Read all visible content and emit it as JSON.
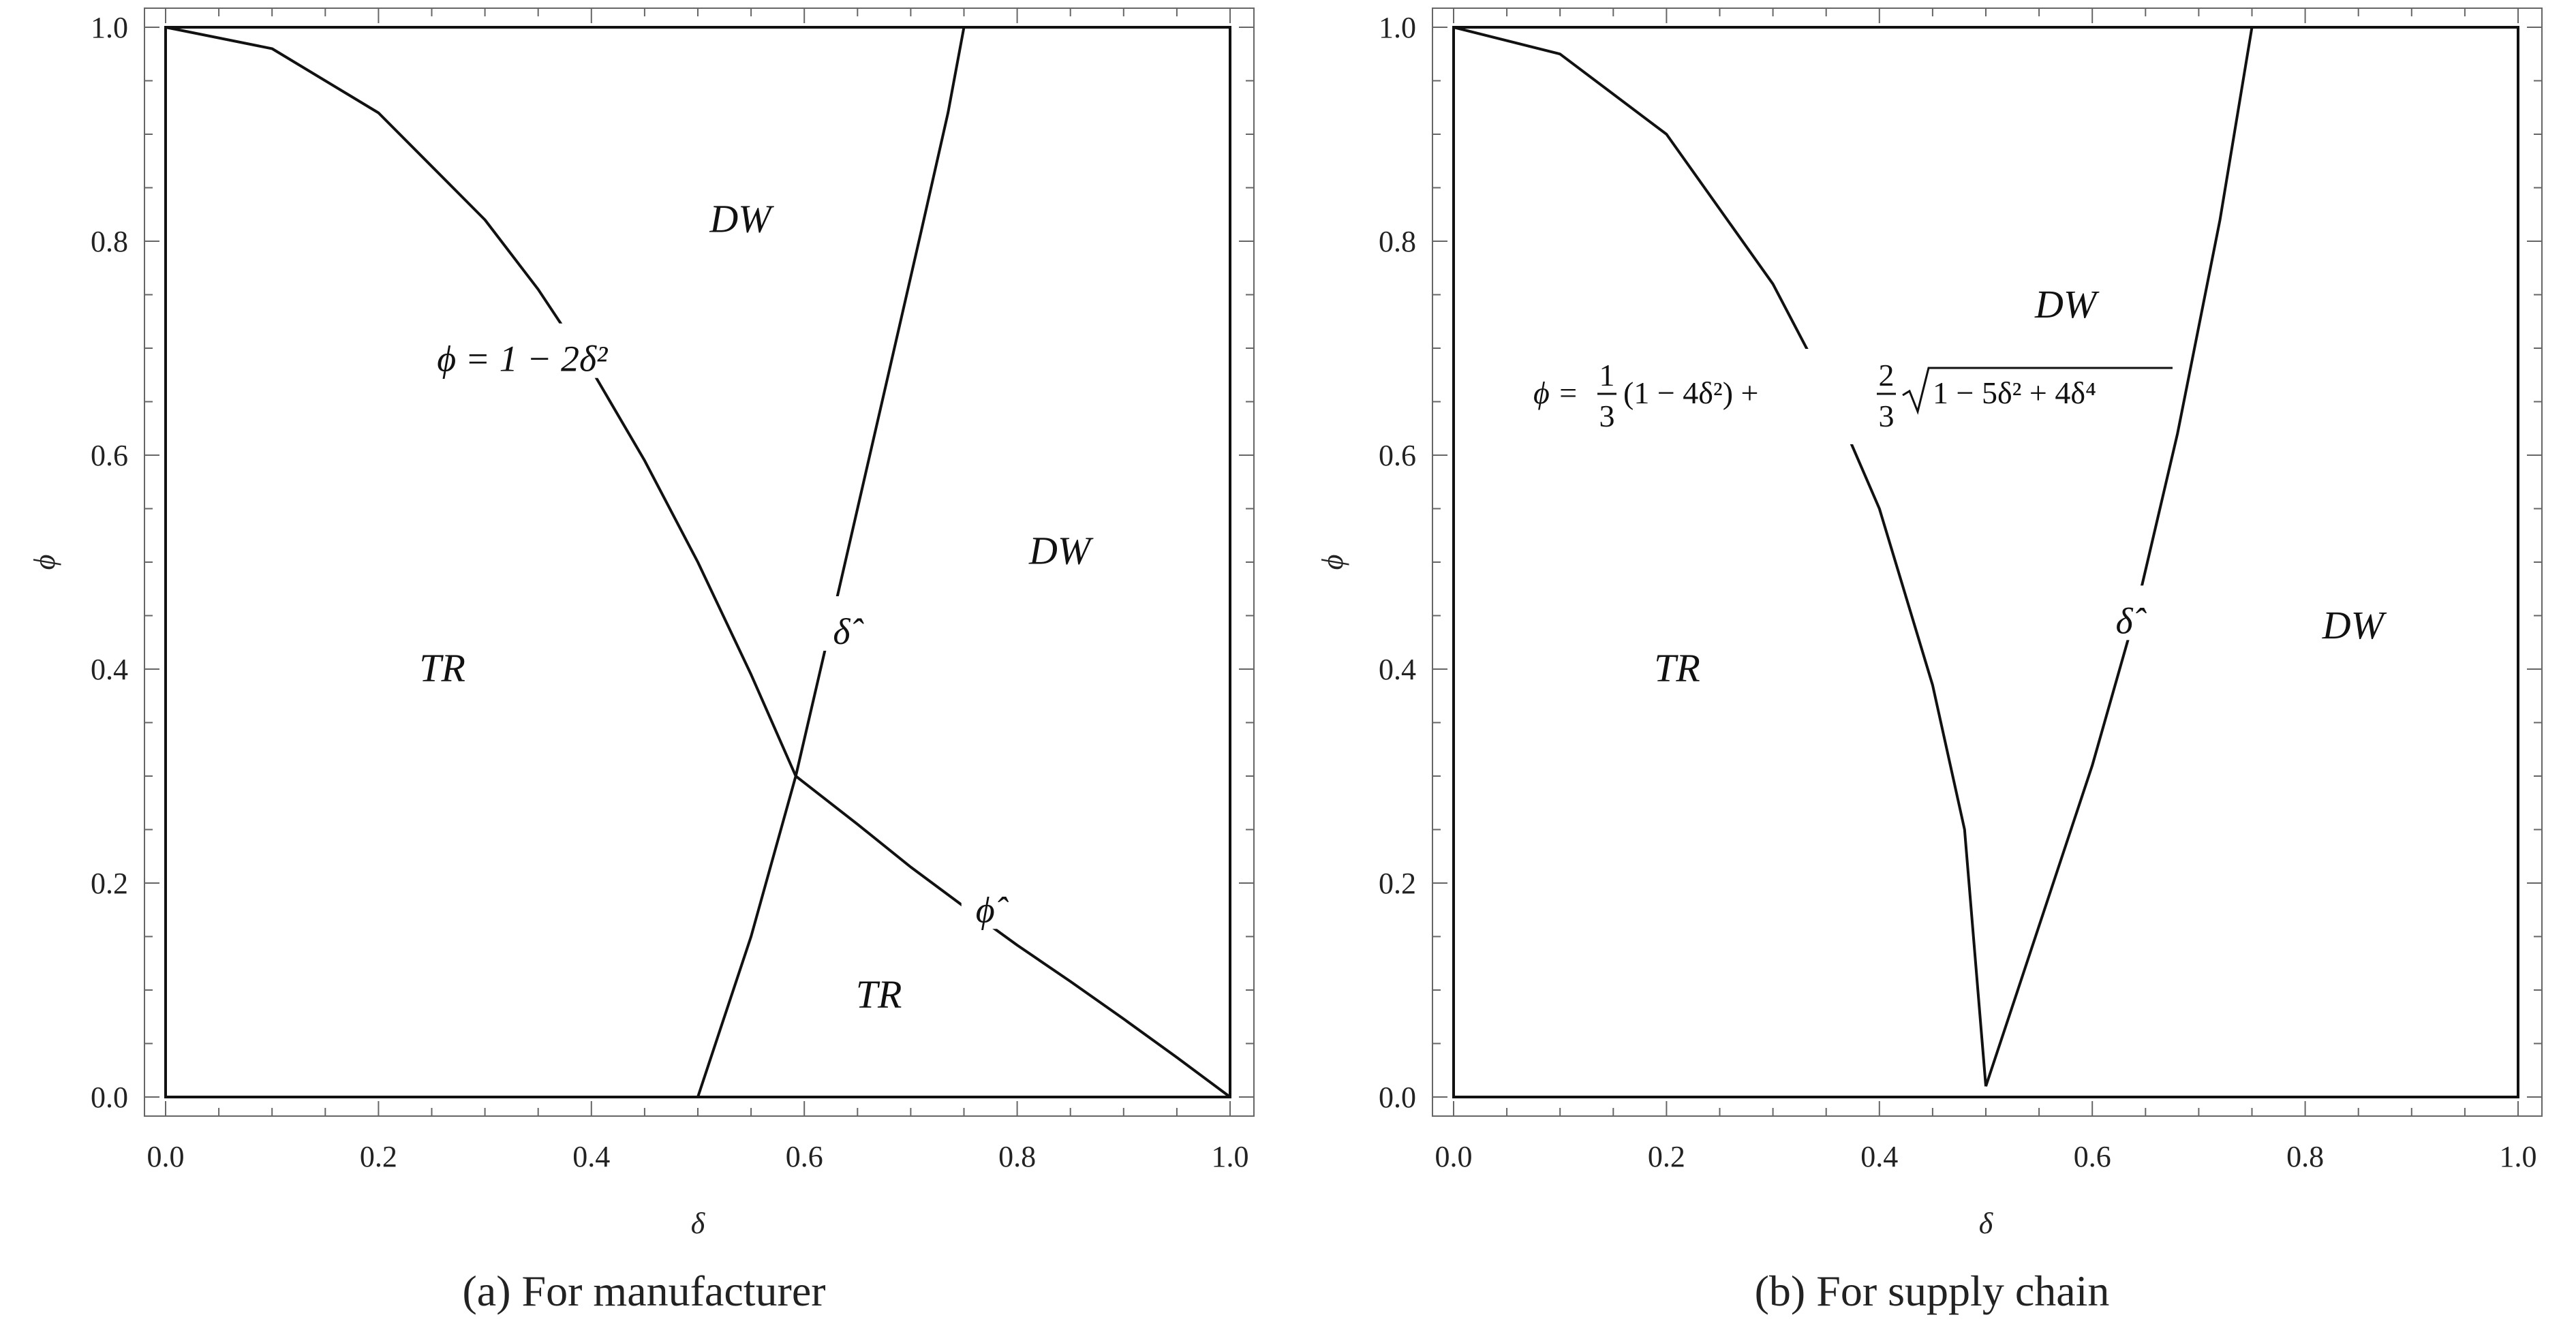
{
  "chart_data": [
    {
      "type": "line",
      "caption": "(a) For manufacturer",
      "xlabel": "δ",
      "ylabel": "ϕ",
      "xlim": [
        0,
        1
      ],
      "ylim": [
        0,
        1
      ],
      "xticks": [
        "0.0",
        "0.2",
        "0.4",
        "0.6",
        "0.8",
        "1.0"
      ],
      "yticks": [
        "0.0",
        "0.2",
        "0.4",
        "0.6",
        "0.8",
        "1.0"
      ],
      "grid": false,
      "series": [
        {
          "label": "ϕ = 1 − 2δ²",
          "x": [
            0,
            0.1,
            0.2,
            0.3,
            0.35,
            0.4,
            0.45,
            0.5,
            0.55,
            0.592
          ],
          "y": [
            1,
            0.98,
            0.92,
            0.82,
            0.755,
            0.68,
            0.595,
            0.5,
            0.395,
            0.3
          ]
        },
        {
          "label": "δ̂",
          "x": [
            0.5,
            0.52,
            0.55,
            0.592,
            0.62,
            0.65,
            0.68,
            0.71,
            0.735,
            0.75
          ],
          "y": [
            0.0,
            0.06,
            0.15,
            0.3,
            0.42,
            0.55,
            0.68,
            0.81,
            0.92,
            1.0
          ]
        },
        {
          "label": "ϕ̂",
          "x": [
            0.592,
            0.65,
            0.7,
            0.75,
            0.8,
            0.85,
            0.9,
            0.95,
            1.0
          ],
          "y": [
            0.3,
            0.255,
            0.215,
            0.178,
            0.142,
            0.108,
            0.073,
            0.037,
            0.0
          ]
        }
      ],
      "annotations": [
        {
          "text": "DW",
          "x": 0.54,
          "y": 0.82,
          "kind": "region"
        },
        {
          "text": "DW",
          "x": 0.84,
          "y": 0.51,
          "kind": "region"
        },
        {
          "text": "TR",
          "x": 0.26,
          "y": 0.4,
          "kind": "region"
        },
        {
          "text": "TR",
          "x": 0.67,
          "y": 0.095,
          "kind": "region"
        },
        {
          "text": "ϕ = 1 − 2δ²",
          "x": 0.335,
          "y": 0.69,
          "kind": "curve"
        },
        {
          "text": "δ̂",
          "x": 0.635,
          "y": 0.435,
          "kind": "curve"
        },
        {
          "text": "ϕ̂",
          "x": 0.77,
          "y": 0.175,
          "kind": "curve"
        }
      ]
    },
    {
      "type": "line",
      "caption": "(b) For supply chain",
      "xlabel": "δ",
      "ylabel": "ϕ",
      "xlim": [
        0,
        1
      ],
      "ylim": [
        0,
        1
      ],
      "xticks": [
        "0.0",
        "0.2",
        "0.4",
        "0.6",
        "0.8",
        "1.0"
      ],
      "yticks": [
        "0.0",
        "0.2",
        "0.4",
        "0.6",
        "0.8",
        "1.0"
      ],
      "grid": false,
      "series": [
        {
          "label": "ϕ = ⅓(1 − 4δ²) + ⅔√(1 − 5δ² + 4δ⁴)",
          "x": [
            0,
            0.1,
            0.2,
            0.3,
            0.35,
            0.4,
            0.45,
            0.48,
            0.5
          ],
          "y": [
            1,
            0.975,
            0.9,
            0.76,
            0.665,
            0.55,
            0.385,
            0.25,
            0.01
          ]
        },
        {
          "label": "δ̂",
          "x": [
            0.5,
            0.53,
            0.56,
            0.6,
            0.64,
            0.68,
            0.72,
            0.75
          ],
          "y": [
            0.01,
            0.1,
            0.19,
            0.31,
            0.45,
            0.62,
            0.82,
            1.0
          ]
        }
      ],
      "annotations": [
        {
          "text": "DW",
          "x": 0.575,
          "y": 0.74,
          "kind": "region"
        },
        {
          "text": "DW",
          "x": 0.845,
          "y": 0.44,
          "kind": "region"
        },
        {
          "text": "TR",
          "x": 0.21,
          "y": 0.4,
          "kind": "region"
        },
        {
          "text": "δ̂",
          "x": 0.63,
          "y": 0.445,
          "kind": "curve"
        }
      ],
      "formula": {
        "lhs": "ϕ =",
        "frac1_num": "1",
        "frac1_den": "3",
        "part1": "(1 − 4δ²) +",
        "frac2_num": "2",
        "frac2_den": "3",
        "radicand": "1 − 5δ² + 4δ⁴"
      }
    }
  ]
}
